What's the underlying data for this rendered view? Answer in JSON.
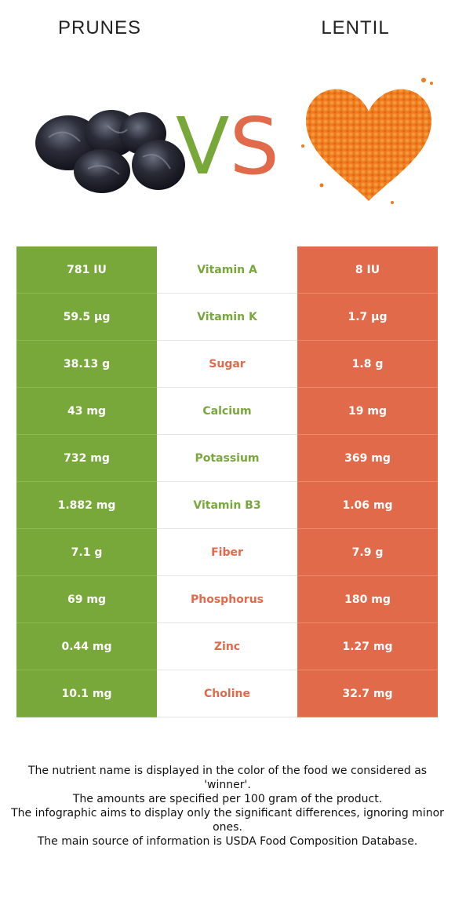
{
  "header": {
    "left_food": "PRUNES",
    "right_food": "LENTIL",
    "vs_v": "V",
    "vs_s": "S"
  },
  "colors": {
    "left_winner": "#78a83a",
    "right_winner": "#e16a4b"
  },
  "rows": [
    {
      "left": "781 IU",
      "nutrient": "Vitamin A",
      "right": "8 IU",
      "winner": "left"
    },
    {
      "left": "59.5 µg",
      "nutrient": "Vitamin K",
      "right": "1.7 µg",
      "winner": "left"
    },
    {
      "left": "38.13 g",
      "nutrient": "Sugar",
      "right": "1.8 g",
      "winner": "right"
    },
    {
      "left": "43 mg",
      "nutrient": "Calcium",
      "right": "19 mg",
      "winner": "left"
    },
    {
      "left": "732 mg",
      "nutrient": "Potassium",
      "right": "369 mg",
      "winner": "left"
    },
    {
      "left": "1.882 mg",
      "nutrient": "Vitamin B3",
      "right": "1.06 mg",
      "winner": "left"
    },
    {
      "left": "7.1 g",
      "nutrient": "Fiber",
      "right": "7.9 g",
      "winner": "right"
    },
    {
      "left": "69 mg",
      "nutrient": "Phosphorus",
      "right": "180 mg",
      "winner": "right"
    },
    {
      "left": "0.44 mg",
      "nutrient": "Zinc",
      "right": "1.27 mg",
      "winner": "right"
    },
    {
      "left": "10.1 mg",
      "nutrient": "Choline",
      "right": "32.7 mg",
      "winner": "right"
    }
  ],
  "footer": {
    "line1": "The nutrient name is displayed in the color of the food we considered as 'winner'.",
    "line2": "The amounts are specified per 100 gram of the product.",
    "line3": "The infographic aims to display only the significant differences, ignoring minor ones.",
    "line4": "The main source of information is USDA Food Composition Database."
  },
  "images": {
    "left": "prunes-image",
    "right": "lentil-heart-image"
  }
}
